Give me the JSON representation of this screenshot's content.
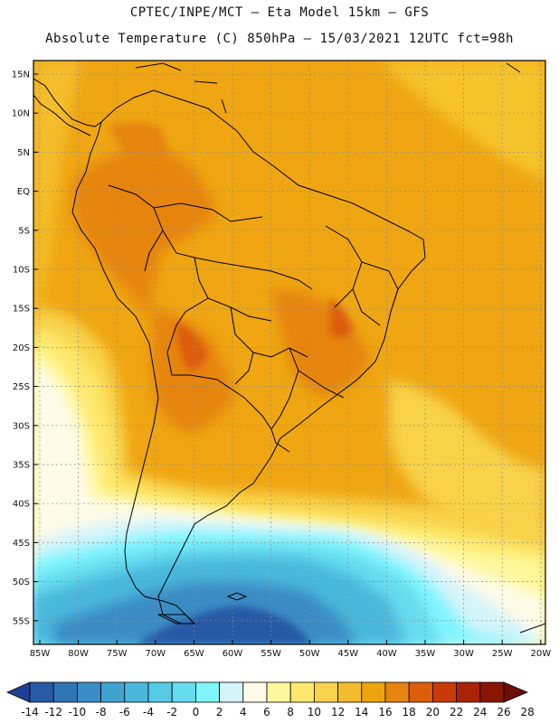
{
  "header": {
    "title_line1": "CPTEC/INPE/MCT – Eta Model 15km – GFS",
    "title_line2": "Absolute Temperature (C) 850hPa – 15/03/2021 12UTC fct=98h"
  },
  "axes": {
    "lat_labels": [
      "15N",
      "10N",
      "5N",
      "EQ",
      "5S",
      "10S",
      "15S",
      "20S",
      "25S",
      "30S",
      "35S",
      "40S",
      "45S",
      "50S",
      "55S"
    ],
    "lon_labels": [
      "85W",
      "80W",
      "75W",
      "70W",
      "65W",
      "60W",
      "55W",
      "50W",
      "45W",
      "40W",
      "35W",
      "30W",
      "25W",
      "20W"
    ]
  },
  "colorbar": {
    "ticks": [
      "-14",
      "-12",
      "-10",
      "-8",
      "-6",
      "-4",
      "-2",
      "0",
      "2",
      "4",
      "6",
      "8",
      "10",
      "12",
      "14",
      "16",
      "18",
      "20",
      "22",
      "24",
      "26",
      "28"
    ],
    "colors": [
      "#1f3f94",
      "#285aa6",
      "#2f74b5",
      "#3a8cc4",
      "#3fa3cf",
      "#49b8dc",
      "#55cbe6",
      "#66dcef",
      "#7ff5ff",
      "#d3f4fb",
      "#fffbe8",
      "#fff79b",
      "#fde86c",
      "#f8d24a",
      "#f2bd2c",
      "#eda50f",
      "#e6850e",
      "#dd5d0a",
      "#c83b06",
      "#a92304",
      "#8a1505",
      "#6c0e0a"
    ]
  },
  "map": {
    "background_color": "#efa612",
    "land_outline_color": "#000000"
  }
}
